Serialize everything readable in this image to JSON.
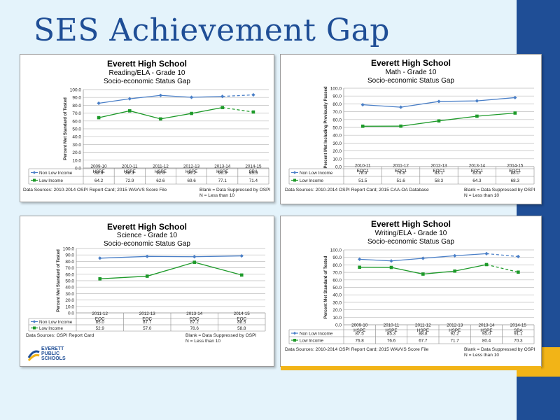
{
  "slide": {
    "title": "SES Achievement Gap"
  },
  "colors": {
    "non_low_income": "#4a7fc7",
    "low_income": "#1e9a2a",
    "brand_blue": "#1f4e96",
    "brand_gold": "#f2b417"
  },
  "panels": [
    {
      "school": "Everett High School",
      "subject": "Reading/ELA - Grade 10",
      "gap": "Socio-economic Status Gap",
      "source": "Data Sources: 2010-2014 OSPI Report Card; 2015 WAVVS Score File",
      "blank_note": "Blank = Data Suppressed by OSPI",
      "n_note": "N = Less than 10"
    },
    {
      "school": "Everett High School",
      "subject": "Math - Grade 10",
      "gap": "Socio-economic Status Gap",
      "source": "Data Sources: 2010-2014 OSPI Report Card; 2015 CAA-OA Database",
      "blank_note": "Blank = Data Suppressed by OSPI",
      "n_note": "N = Less than 10"
    },
    {
      "school": "Everett High School",
      "subject": "Science - Grade 10",
      "gap": "Socio-economic Status Gap",
      "source": "Data Sources: OSPI Report Card",
      "blank_note": "Blank = Data Suppressed by OSPI",
      "n_note": "N = Less than 10",
      "logo": [
        "EVERETT",
        "PUBLIC",
        "SCHOOLS"
      ]
    },
    {
      "school": "Everett High School",
      "subject": "Writing/ELA - Grade 10",
      "gap": "Socio-economic Status Gap",
      "source": "Data Sources: 2010-2014 OSPI Report Card; 2015 WAVVS Score File",
      "blank_note": "Blank = Data Suppressed by OSPI",
      "n_note": "N = Less than 10"
    }
  ],
  "chart_data": [
    {
      "type": "line",
      "title": "Everett High School",
      "subtitle": "Reading/ELA - Grade 10 · Socio-economic Status Gap",
      "ylabel": "Percent Met Standard of Tested",
      "ylim": [
        0,
        100
      ],
      "yticks": [
        "0.0",
        "10.0",
        "20.0",
        "30.0",
        "40.0",
        "50.0",
        "60.0",
        "70.0",
        "80.0",
        "90.0",
        "100.0"
      ],
      "grid": true,
      "categories": [
        "2009-10 HSPE",
        "2010-11 HSPE",
        "2011-12 HSPE",
        "2012-13 HSPE",
        "2013-14 HSPE",
        "2014-15 SBA"
      ],
      "series": [
        {
          "name": "Non Low Income",
          "values": [
            82.6,
            88.3,
            92.6,
            90.2,
            91.3,
            93.3
          ],
          "dashed_last": true
        },
        {
          "name": "Low Income",
          "values": [
            64.2,
            72.9,
            62.6,
            69.6,
            77.1,
            71.4
          ],
          "dashed_last": true
        }
      ]
    },
    {
      "type": "line",
      "title": "Everett High School",
      "subtitle": "Math - Grade 10 · Socio-economic Status Gap",
      "ylabel": "Percent Met Including Previously Passed",
      "ylim": [
        0,
        100
      ],
      "yticks": [
        "0.0",
        "10.0",
        "20.0",
        "30.0",
        "40.0",
        "50.0",
        "60.0",
        "70.0",
        "80.0",
        "90.0",
        "100.0"
      ],
      "grid": true,
      "categories": [
        "2010-11 EOC1",
        "2011-12 EOC1",
        "2012-13 EOC1",
        "2013-14 EOC1",
        "2014-15 EOC1"
      ],
      "series": [
        {
          "name": "Non Low Income",
          "values": [
            78.9,
            75.8,
            83.1,
            83.8,
            88.0
          ]
        },
        {
          "name": "Low Income",
          "values": [
            51.5,
            51.6,
            58.3,
            64.3,
            68.3
          ]
        }
      ]
    },
    {
      "type": "line",
      "title": "Everett High School",
      "subtitle": "Science - Grade 10 · Socio-economic Status Gap",
      "ylabel": "Percent Met Standard of Tested",
      "ylim": [
        0,
        100
      ],
      "yticks": [
        "0.0",
        "10.0",
        "20.0",
        "30.0",
        "40.0",
        "50.0",
        "60.0",
        "70.0",
        "80.0",
        "90.0",
        "100.0"
      ],
      "grid": true,
      "categories": [
        "2011-12 EOC",
        "2012-13 EOC",
        "2013-14 EOC",
        "2014-15 EOC"
      ],
      "series": [
        {
          "name": "Non Low Income",
          "values": [
            85.0,
            87.7,
            87.2,
            88.5
          ]
        },
        {
          "name": "Low Income",
          "values": [
            52.9,
            57.0,
            78.6,
            58.8
          ]
        }
      ]
    },
    {
      "type": "line",
      "title": "Everett High School",
      "subtitle": "Writing/ELA - Grade 10 · Socio-economic Status Gap",
      "ylabel": "Percent Met Standard of Tested",
      "ylim": [
        0,
        100
      ],
      "yticks": [
        "0.0",
        "10.0",
        "20.0",
        "30.0",
        "40.0",
        "50.0",
        "60.0",
        "70.0",
        "80.0",
        "90.0",
        "100.0"
      ],
      "grid": true,
      "categories": [
        "2009-10 HSPE",
        "2010-11 HSPE",
        "2011-12 HSPE",
        "2012-13 HSPE",
        "2013-14 HSPE",
        "2014-15 SBA"
      ],
      "series": [
        {
          "name": "Non Low Income",
          "values": [
            87.5,
            85.3,
            88.8,
            92.2,
            95.0,
            91.1
          ],
          "dashed_last": true
        },
        {
          "name": "Low Income",
          "values": [
            76.8,
            76.6,
            67.7,
            71.7,
            80.4,
            70.3
          ],
          "dashed_last": true
        }
      ]
    }
  ]
}
